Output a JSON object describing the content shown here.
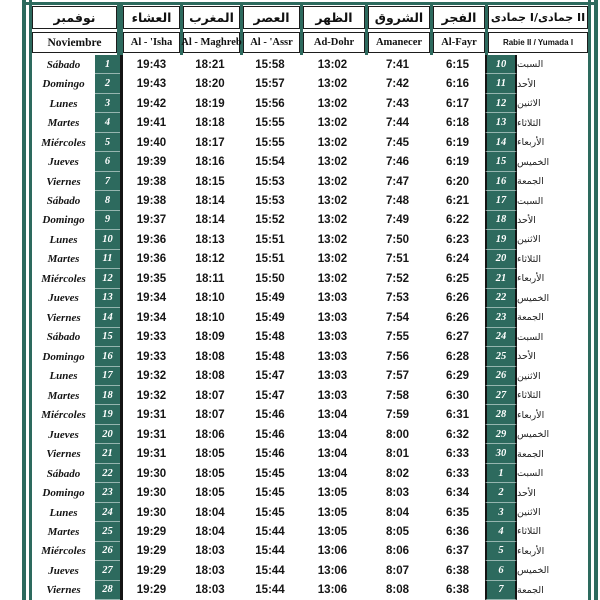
{
  "accent_color": "#2d6a5e",
  "header": {
    "columns": [
      {
        "ar": "نوفمبر",
        "latin": "Noviembre"
      },
      {
        "ar": "العشاء",
        "latin": "Al - 'Isha"
      },
      {
        "ar": "المغرب",
        "latin": "Al - Maghreb"
      },
      {
        "ar": "العصر",
        "latin": "Al - 'Assr"
      },
      {
        "ar": "الظهر",
        "latin": "Ad-Dohr"
      },
      {
        "ar": "الشروق",
        "latin": "Amanecer"
      },
      {
        "ar": "الفجر",
        "latin": "Al-Fayr"
      },
      {
        "ar": "جمادى I/جمادى II",
        "latin": "Rabie II /  Yumada I"
      }
    ]
  },
  "rows": [
    {
      "day_es": "Sábado",
      "day_num": "1",
      "isha": "19:43",
      "maghreb": "18:21",
      "asr": "15:58",
      "dohr": "13:02",
      "amanecer": "7:41",
      "fayr": "6:15",
      "hijri": "10",
      "day_ar": "السبت"
    },
    {
      "day_es": "Domingo",
      "day_num": "2",
      "isha": "19:43",
      "maghreb": "18:20",
      "asr": "15:57",
      "dohr": "13:02",
      "amanecer": "7:42",
      "fayr": "6:16",
      "hijri": "11",
      "day_ar": "الأحد"
    },
    {
      "day_es": "Lunes",
      "day_num": "3",
      "isha": "19:42",
      "maghreb": "18:19",
      "asr": "15:56",
      "dohr": "13:02",
      "amanecer": "7:43",
      "fayr": "6:17",
      "hijri": "12",
      "day_ar": "الاثنين"
    },
    {
      "day_es": "Martes",
      "day_num": "4",
      "isha": "19:41",
      "maghreb": "18:18",
      "asr": "15:55",
      "dohr": "13:02",
      "amanecer": "7:44",
      "fayr": "6:18",
      "hijri": "13",
      "day_ar": "الثلاثاء"
    },
    {
      "day_es": "Miércoles",
      "day_num": "5",
      "isha": "19:40",
      "maghreb": "18:17",
      "asr": "15:55",
      "dohr": "13:02",
      "amanecer": "7:45",
      "fayr": "6:19",
      "hijri": "14",
      "day_ar": "الأربعاء"
    },
    {
      "day_es": "Jueves",
      "day_num": "6",
      "isha": "19:39",
      "maghreb": "18:16",
      "asr": "15:54",
      "dohr": "13:02",
      "amanecer": "7:46",
      "fayr": "6:19",
      "hijri": "15",
      "day_ar": "الخميس"
    },
    {
      "day_es": "Viernes",
      "day_num": "7",
      "isha": "19:38",
      "maghreb": "18:15",
      "asr": "15:53",
      "dohr": "13:02",
      "amanecer": "7:47",
      "fayr": "6:20",
      "hijri": "16",
      "day_ar": "الجمعة"
    },
    {
      "day_es": "Sábado",
      "day_num": "8",
      "isha": "19:38",
      "maghreb": "18:14",
      "asr": "15:53",
      "dohr": "13:02",
      "amanecer": "7:48",
      "fayr": "6:21",
      "hijri": "17",
      "day_ar": "السبت"
    },
    {
      "day_es": "Domingo",
      "day_num": "9",
      "isha": "19:37",
      "maghreb": "18:14",
      "asr": "15:52",
      "dohr": "13:02",
      "amanecer": "7:49",
      "fayr": "6:22",
      "hijri": "18",
      "day_ar": "الأحد"
    },
    {
      "day_es": "Lunes",
      "day_num": "10",
      "isha": "19:36",
      "maghreb": "18:13",
      "asr": "15:51",
      "dohr": "13:02",
      "amanecer": "7:50",
      "fayr": "6:23",
      "hijri": "19",
      "day_ar": "الاثنين"
    },
    {
      "day_es": "Martes",
      "day_num": "11",
      "isha": "19:36",
      "maghreb": "18:12",
      "asr": "15:51",
      "dohr": "13:02",
      "amanecer": "7:51",
      "fayr": "6:24",
      "hijri": "20",
      "day_ar": "الثلاثاء"
    },
    {
      "day_es": "Miércoles",
      "day_num": "12",
      "isha": "19:35",
      "maghreb": "18:11",
      "asr": "15:50",
      "dohr": "13:02",
      "amanecer": "7:52",
      "fayr": "6:25",
      "hijri": "21",
      "day_ar": "الأربعاء"
    },
    {
      "day_es": "Jueves",
      "day_num": "13",
      "isha": "19:34",
      "maghreb": "18:10",
      "asr": "15:49",
      "dohr": "13:03",
      "amanecer": "7:53",
      "fayr": "6:26",
      "hijri": "22",
      "day_ar": "الخميس"
    },
    {
      "day_es": "Viernes",
      "day_num": "14",
      "isha": "19:34",
      "maghreb": "18:10",
      "asr": "15:49",
      "dohr": "13:03",
      "amanecer": "7:54",
      "fayr": "6:26",
      "hijri": "23",
      "day_ar": "الجمعة"
    },
    {
      "day_es": "Sábado",
      "day_num": "15",
      "isha": "19:33",
      "maghreb": "18:09",
      "asr": "15:48",
      "dohr": "13:03",
      "amanecer": "7:55",
      "fayr": "6:27",
      "hijri": "24",
      "day_ar": "السبت"
    },
    {
      "day_es": "Domingo",
      "day_num": "16",
      "isha": "19:33",
      "maghreb": "18:08",
      "asr": "15:48",
      "dohr": "13:03",
      "amanecer": "7:56",
      "fayr": "6:28",
      "hijri": "25",
      "day_ar": "الأحد"
    },
    {
      "day_es": "Lunes",
      "day_num": "17",
      "isha": "19:32",
      "maghreb": "18:08",
      "asr": "15:47",
      "dohr": "13:03",
      "amanecer": "7:57",
      "fayr": "6:29",
      "hijri": "26",
      "day_ar": "الاثنين"
    },
    {
      "day_es": "Martes",
      "day_num": "18",
      "isha": "19:32",
      "maghreb": "18:07",
      "asr": "15:47",
      "dohr": "13:03",
      "amanecer": "7:58",
      "fayr": "6:30",
      "hijri": "27",
      "day_ar": "الثلاثاء"
    },
    {
      "day_es": "Miércoles",
      "day_num": "19",
      "isha": "19:31",
      "maghreb": "18:07",
      "asr": "15:46",
      "dohr": "13:04",
      "amanecer": "7:59",
      "fayr": "6:31",
      "hijri": "28",
      "day_ar": "الأربعاء"
    },
    {
      "day_es": "Jueves",
      "day_num": "20",
      "isha": "19:31",
      "maghreb": "18:06",
      "asr": "15:46",
      "dohr": "13:04",
      "amanecer": "8:00",
      "fayr": "6:32",
      "hijri": "29",
      "day_ar": "الخميس"
    },
    {
      "day_es": "Viernes",
      "day_num": "21",
      "isha": "19:31",
      "maghreb": "18:05",
      "asr": "15:46",
      "dohr": "13:04",
      "amanecer": "8:01",
      "fayr": "6:33",
      "hijri": "30",
      "day_ar": "الجمعة"
    },
    {
      "day_es": "Sábado",
      "day_num": "22",
      "isha": "19:30",
      "maghreb": "18:05",
      "asr": "15:45",
      "dohr": "13:04",
      "amanecer": "8:02",
      "fayr": "6:33",
      "hijri": "1",
      "day_ar": "السبت"
    },
    {
      "day_es": "Domingo",
      "day_num": "23",
      "isha": "19:30",
      "maghreb": "18:05",
      "asr": "15:45",
      "dohr": "13:05",
      "amanecer": "8:03",
      "fayr": "6:34",
      "hijri": "2",
      "day_ar": "الأحد"
    },
    {
      "day_es": "Lunes",
      "day_num": "24",
      "isha": "19:30",
      "maghreb": "18:04",
      "asr": "15:45",
      "dohr": "13:05",
      "amanecer": "8:04",
      "fayr": "6:35",
      "hijri": "3",
      "day_ar": "الاثنين"
    },
    {
      "day_es": "Martes",
      "day_num": "25",
      "isha": "19:29",
      "maghreb": "18:04",
      "asr": "15:44",
      "dohr": "13:05",
      "amanecer": "8:05",
      "fayr": "6:36",
      "hijri": "4",
      "day_ar": "الثلاثاء"
    },
    {
      "day_es": "Miércoles",
      "day_num": "26",
      "isha": "19:29",
      "maghreb": "18:03",
      "asr": "15:44",
      "dohr": "13:06",
      "amanecer": "8:06",
      "fayr": "6:37",
      "hijri": "5",
      "day_ar": "الأربعاء"
    },
    {
      "day_es": "Jueves",
      "day_num": "27",
      "isha": "19:29",
      "maghreb": "18:03",
      "asr": "15:44",
      "dohr": "13:06",
      "amanecer": "8:07",
      "fayr": "6:38",
      "hijri": "6",
      "day_ar": "الخميس"
    },
    {
      "day_es": "Viernes",
      "day_num": "28",
      "isha": "19:29",
      "maghreb": "18:03",
      "asr": "15:44",
      "dohr": "13:06",
      "amanecer": "8:08",
      "fayr": "6:38",
      "hijri": "7",
      "day_ar": "الجمعة"
    }
  ]
}
